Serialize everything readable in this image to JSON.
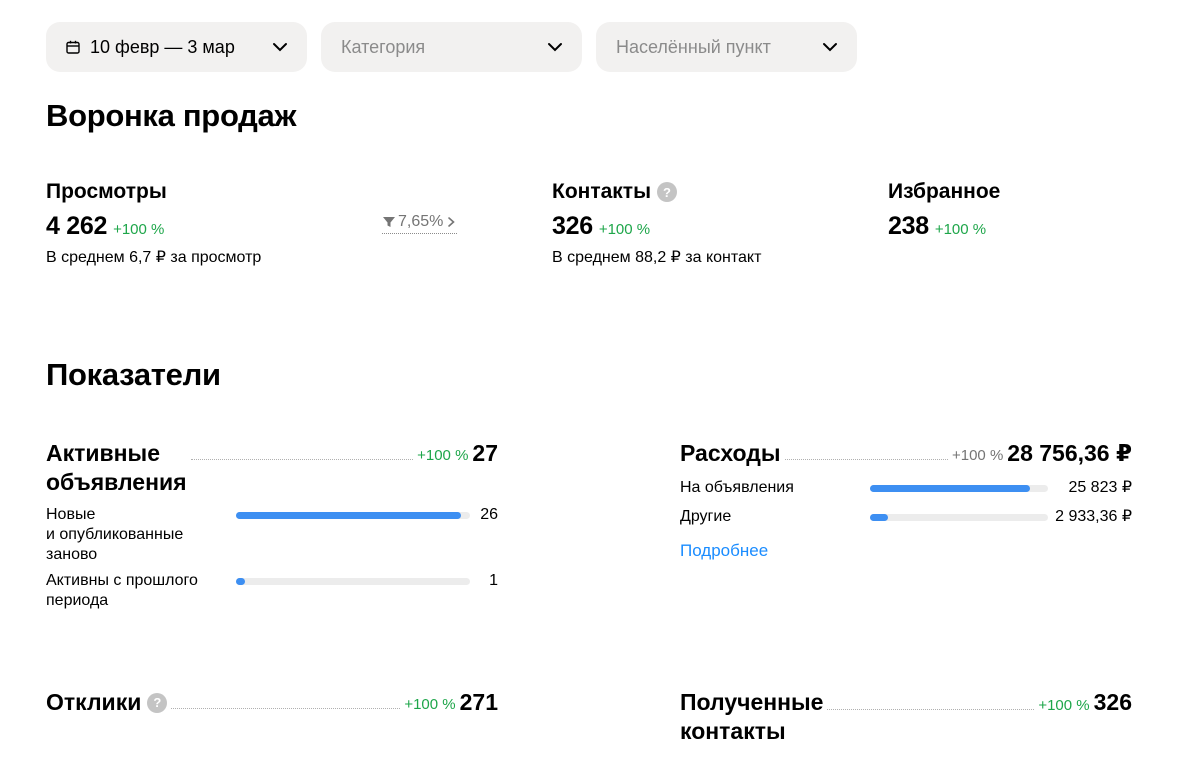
{
  "filters": {
    "period": "10 февр — 3 мар",
    "category_placeholder": "Категория",
    "location_placeholder": "Населённый пункт"
  },
  "funnel": {
    "title": "Воронка продаж",
    "views": {
      "label": "Просмотры",
      "value": "4 262",
      "delta": "+100 %",
      "sub": "В среднем 6,7 ₽ за просмотр"
    },
    "conversion": "7,65%",
    "contacts": {
      "label": "Контакты",
      "value": "326",
      "delta": "+100 %",
      "sub": "В среднем 88,2 ₽ за контакт"
    },
    "favorites": {
      "label": "Избранное",
      "value": "238",
      "delta": "+100 %"
    }
  },
  "indicators": {
    "title": "Показатели",
    "active": {
      "title_line1": "Активные",
      "title_line2": "объявления",
      "delta": "+100 %",
      "value": "27",
      "rows": [
        {
          "label_line1": "Новые",
          "label_line2": "и опубликованные",
          "label_line3": "заново",
          "value": "26",
          "fraction": 0.963
        },
        {
          "label_line1": "Активны с прошлого",
          "label_line2": "периода",
          "value": "1",
          "fraction": 0.037
        }
      ]
    },
    "expenses": {
      "title": "Расходы",
      "delta": "+100 %",
      "value": "28 756,36 ₽",
      "rows": [
        {
          "label": "На объявления",
          "value": "25 823 ₽",
          "fraction": 0.898
        },
        {
          "label": "Другие",
          "value": "2 933,36 ₽",
          "fraction": 0.102
        }
      ],
      "link": "Подробнее"
    },
    "responses": {
      "title": "Отклики",
      "delta": "+100 %",
      "value": "271"
    },
    "received": {
      "title_line1": "Полученные",
      "title_line2": "контакты",
      "delta": "+100 %",
      "value": "326"
    }
  },
  "colors": {
    "accent": "#3d8ff2",
    "positive": "#1ea64a",
    "link": "#1a8cff"
  }
}
